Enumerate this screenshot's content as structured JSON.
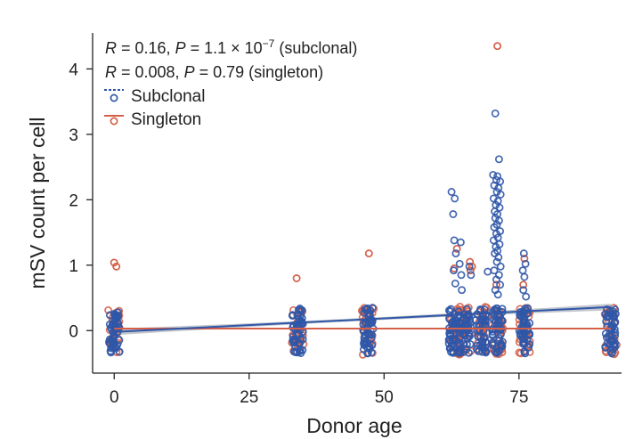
{
  "chart_data": {
    "type": "scatter",
    "xlabel": "Donor age",
    "ylabel": "mSV count per cell",
    "xlim": [
      -4,
      94
    ],
    "ylim": [
      -0.65,
      4.55
    ],
    "xticks": [
      0,
      25,
      50,
      75
    ],
    "yticks": [
      0,
      1,
      2,
      3,
      4
    ],
    "grid": false,
    "legend_position": "top-left",
    "annotations": {
      "subclonal": {
        "R": "0.16",
        "P_text": "1.1 × 10",
        "P_exp": "−7",
        "group": "(subclonal)"
      },
      "singleton": {
        "R": "0.008",
        "P_text": "0.79",
        "group": "(singleton)"
      }
    },
    "series": [
      {
        "name": "Subclonal",
        "color": "#2f57a8",
        "line_style": "dashed-legend",
        "regression": {
          "x": [
            0,
            92
          ],
          "y": [
            -0.02,
            0.36
          ]
        },
        "donor_ages": [
          0,
          34,
          47,
          63,
          65,
          68,
          71,
          76,
          92
        ],
        "outliers": [
          {
            "x": 62.5,
            "y": 2.12
          },
          {
            "x": 63.1,
            "y": 2.02
          },
          {
            "x": 62.8,
            "y": 1.78
          },
          {
            "x": 63.0,
            "y": 1.38
          },
          {
            "x": 64.2,
            "y": 1.35
          },
          {
            "x": 63.3,
            "y": 1.18
          },
          {
            "x": 64.0,
            "y": 1.02
          },
          {
            "x": 62.9,
            "y": 0.92
          },
          {
            "x": 64.3,
            "y": 0.85
          },
          {
            "x": 63.2,
            "y": 0.72
          },
          {
            "x": 64.4,
            "y": 0.62
          },
          {
            "x": 65.8,
            "y": 0.98
          },
          {
            "x": 66.1,
            "y": 0.85
          },
          {
            "x": 69.2,
            "y": 0.9
          },
          {
            "x": 70.6,
            "y": 3.32
          },
          {
            "x": 71.3,
            "y": 2.62
          },
          {
            "x": 70.2,
            "y": 2.38
          },
          {
            "x": 71.0,
            "y": 2.36
          },
          {
            "x": 70.8,
            "y": 2.3
          },
          {
            "x": 71.5,
            "y": 2.28
          },
          {
            "x": 70.4,
            "y": 2.22
          },
          {
            "x": 71.2,
            "y": 2.18
          },
          {
            "x": 70.9,
            "y": 2.12
          },
          {
            "x": 71.6,
            "y": 2.08
          },
          {
            "x": 70.3,
            "y": 2.02
          },
          {
            "x": 71.1,
            "y": 1.98
          },
          {
            "x": 70.7,
            "y": 1.92
          },
          {
            "x": 71.4,
            "y": 1.88
          },
          {
            "x": 70.5,
            "y": 1.82
          },
          {
            "x": 71.0,
            "y": 1.78
          },
          {
            "x": 70.6,
            "y": 1.72
          },
          {
            "x": 71.3,
            "y": 1.68
          },
          {
            "x": 70.9,
            "y": 1.62
          },
          {
            "x": 70.4,
            "y": 1.58
          },
          {
            "x": 71.5,
            "y": 1.52
          },
          {
            "x": 70.8,
            "y": 1.48
          },
          {
            "x": 71.1,
            "y": 1.42
          },
          {
            "x": 70.3,
            "y": 1.38
          },
          {
            "x": 71.4,
            "y": 1.32
          },
          {
            "x": 70.7,
            "y": 1.28
          },
          {
            "x": 71.0,
            "y": 1.22
          },
          {
            "x": 70.5,
            "y": 1.18
          },
          {
            "x": 71.2,
            "y": 1.12
          },
          {
            "x": 70.9,
            "y": 1.05
          },
          {
            "x": 71.6,
            "y": 0.98
          },
          {
            "x": 70.4,
            "y": 0.92
          },
          {
            "x": 71.3,
            "y": 0.85
          },
          {
            "x": 70.8,
            "y": 0.78
          },
          {
            "x": 71.5,
            "y": 0.7
          },
          {
            "x": 70.6,
            "y": 0.62
          },
          {
            "x": 71.1,
            "y": 0.55
          },
          {
            "x": 75.9,
            "y": 1.18
          },
          {
            "x": 76.2,
            "y": 1.02
          },
          {
            "x": 75.7,
            "y": 0.92
          },
          {
            "x": 76.0,
            "y": 0.82
          },
          {
            "x": 75.8,
            "y": 0.62
          },
          {
            "x": 76.3,
            "y": 0.52
          }
        ]
      },
      {
        "name": "Singleton",
        "color": "#d4604a",
        "line_style": "solid",
        "regression": {
          "x": [
            0,
            92
          ],
          "y": [
            0.03,
            0.03
          ]
        },
        "donor_ages": [
          0,
          34,
          47,
          63,
          65,
          68,
          71,
          76,
          92
        ],
        "outliers": [
          {
            "x": 0.0,
            "y": 1.04
          },
          {
            "x": 0.4,
            "y": 0.98
          },
          {
            "x": 33.8,
            "y": 0.8
          },
          {
            "x": 47.2,
            "y": 1.18
          },
          {
            "x": 63.5,
            "y": 1.25
          },
          {
            "x": 63.0,
            "y": 0.95
          },
          {
            "x": 65.9,
            "y": 1.05
          },
          {
            "x": 66.3,
            "y": 0.98
          },
          {
            "x": 66.0,
            "y": 0.92
          },
          {
            "x": 71.0,
            "y": 4.35
          },
          {
            "x": 70.8,
            "y": 0.7
          },
          {
            "x": 76.0,
            "y": 1.1
          },
          {
            "x": 75.8,
            "y": 0.7
          }
        ]
      }
    ]
  }
}
